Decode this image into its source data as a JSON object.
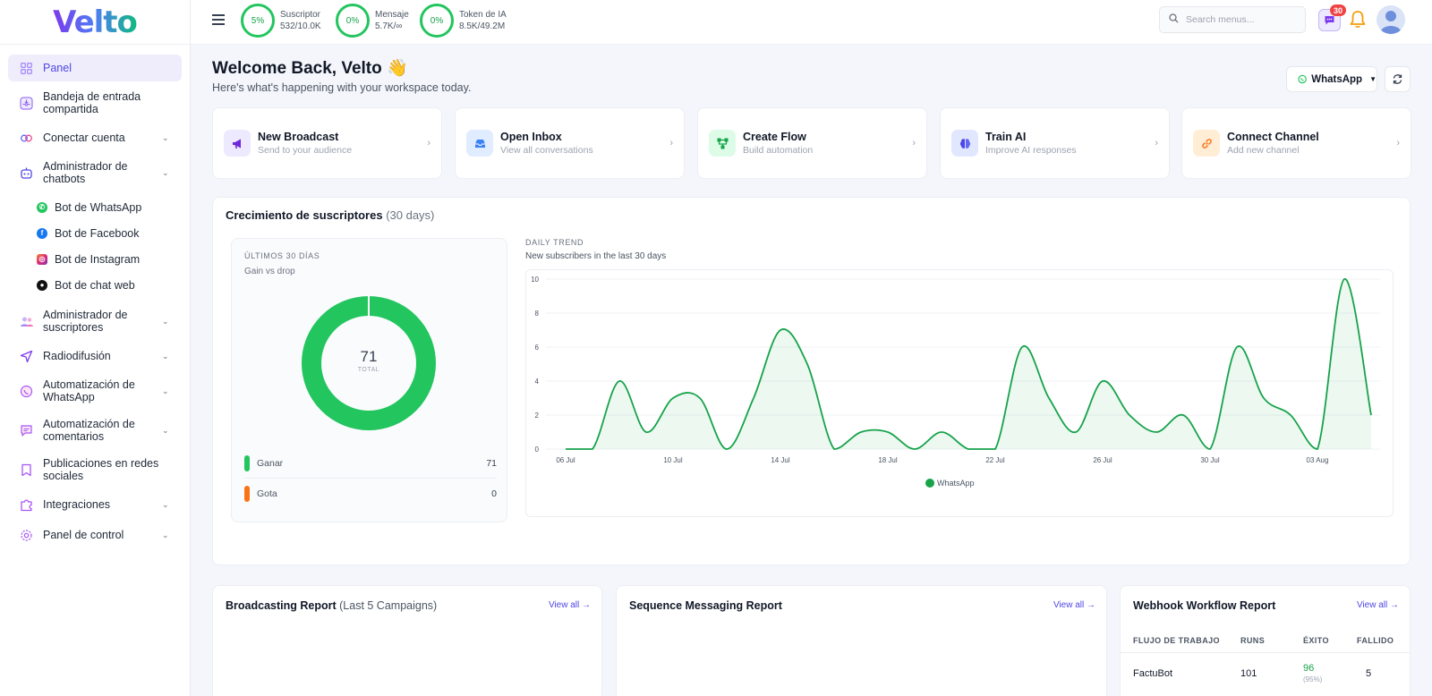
{
  "brand": {
    "logo": "Velto"
  },
  "sidebar": {
    "items": [
      {
        "label": "Panel"
      },
      {
        "label": "Bandeja de entrada compartida"
      },
      {
        "label": "Conectar cuenta"
      },
      {
        "label": "Administrador de chatbots"
      },
      {
        "label": "Administrador de suscriptores"
      },
      {
        "label": "Radiodifusión"
      },
      {
        "label": "Automatización de WhatsApp"
      },
      {
        "label": "Automatización de comentarios"
      },
      {
        "label": "Publicaciones en redes sociales"
      },
      {
        "label": "Integraciones"
      },
      {
        "label": "Panel de control"
      }
    ],
    "chatbots": [
      {
        "label": "Bot de WhatsApp",
        "color": "#22c55e"
      },
      {
        "label": "Bot de Facebook",
        "color": "#1877f2"
      },
      {
        "label": "Bot de Instagram",
        "color": "#e1306c"
      },
      {
        "label": "Bot de chat web",
        "color": "#111111"
      }
    ]
  },
  "topbar": {
    "stats": [
      {
        "percent": "5%",
        "label": "Suscriptor",
        "value": "532/10.0K"
      },
      {
        "percent": "0%",
        "label": "Mensaje",
        "value": "5.7K/∞"
      },
      {
        "percent": "0%",
        "label": "Token de IA",
        "value": "8.5K/49.2M"
      }
    ],
    "search_placeholder": "Search menus...",
    "notification_count": "30"
  },
  "welcome": {
    "title": "Welcome Back, Velto 👋",
    "subtitle": "Here's what's happening with your workspace today."
  },
  "channel_select": {
    "value": "WhatsApp"
  },
  "quick_actions": [
    {
      "title": "New Broadcast",
      "subtitle": "Send to your audience",
      "icon": "megaphone-icon",
      "bg": "#ede9fe",
      "fg": "#6d28d9"
    },
    {
      "title": "Open Inbox",
      "subtitle": "View all conversations",
      "icon": "inbox-icon",
      "bg": "#e0ecff",
      "fg": "#3b82f6"
    },
    {
      "title": "Create Flow",
      "subtitle": "Build automation",
      "icon": "flow-icon",
      "bg": "#dcfce7",
      "fg": "#16a34a"
    },
    {
      "title": "Train AI",
      "subtitle": "Improve AI responses",
      "icon": "brain-icon",
      "bg": "#e0e7ff",
      "fg": "#4f46e5"
    },
    {
      "title": "Connect Channel",
      "subtitle": "Add new channel",
      "icon": "link-icon",
      "bg": "#ffedd5",
      "fg": "#f97316"
    }
  ],
  "growth": {
    "title": "Crecimiento de suscriptores",
    "period": "(30 days)",
    "donut": {
      "label": "ÚLTIMOS 30 DÍAS",
      "subtitle": "Gain vs drop",
      "total": "71",
      "total_label": "TOTAL",
      "legend": [
        {
          "label": "Ganar",
          "value": "71",
          "color": "#22c55e"
        },
        {
          "label": "Gota",
          "value": "0",
          "color": "#f97316"
        }
      ]
    },
    "trend_label": "DAILY TREND",
    "trend_subtitle": "New subscribers in the last 30 days"
  },
  "chart_data": {
    "type": "area",
    "title": "",
    "xlabel": "",
    "ylabel": "",
    "ylim": [
      0,
      10
    ],
    "yticks": [
      0,
      2,
      4,
      6,
      8,
      10
    ],
    "x_tick_labels": [
      "06 Jul",
      "10 Jul",
      "14 Jul",
      "18 Jul",
      "22 Jul",
      "26 Jul",
      "30 Jul",
      "03 Aug"
    ],
    "x_tick_index": [
      0,
      4,
      8,
      12,
      16,
      20,
      24,
      28
    ],
    "x": [
      "06 Jul",
      "07 Jul",
      "08 Jul",
      "09 Jul",
      "10 Jul",
      "11 Jul",
      "12 Jul",
      "13 Jul",
      "14 Jul",
      "15 Jul",
      "16 Jul",
      "17 Jul",
      "18 Jul",
      "19 Jul",
      "20 Jul",
      "21 Jul",
      "22 Jul",
      "23 Jul",
      "24 Jul",
      "25 Jul",
      "26 Jul",
      "27 Jul",
      "28 Jul",
      "29 Jul",
      "30 Jul",
      "31 Jul",
      "01 Aug",
      "02 Aug",
      "03 Aug",
      "04 Aug",
      "05 Aug"
    ],
    "series": [
      {
        "name": "WhatsApp",
        "color": "#16a34a",
        "values": [
          0,
          0,
          4,
          1,
          3,
          3,
          0,
          3,
          7,
          5,
          0,
          1,
          1,
          0,
          1,
          0,
          0,
          6,
          3,
          1,
          4,
          2,
          1,
          2,
          0,
          6,
          3,
          2,
          0,
          10,
          2
        ]
      }
    ],
    "legend": "bottom-center",
    "grid": true
  },
  "reports": {
    "broadcasting": {
      "title": "Broadcasting Report",
      "suffix": "(Last 5 Campaigns)",
      "link": "View all"
    },
    "sequence": {
      "title": "Sequence Messaging Report",
      "link": "View all"
    },
    "webhook": {
      "title": "Webhook Workflow Report",
      "link": "View all",
      "headers": [
        "FLUJO DE TRABAJO",
        "RUNS",
        "ÉXITO",
        "FALLIDO"
      ],
      "rows": [
        {
          "name": "FactuBot",
          "runs": "101",
          "success": "96",
          "success_pct": "(95%)",
          "failed": "5"
        }
      ]
    }
  }
}
